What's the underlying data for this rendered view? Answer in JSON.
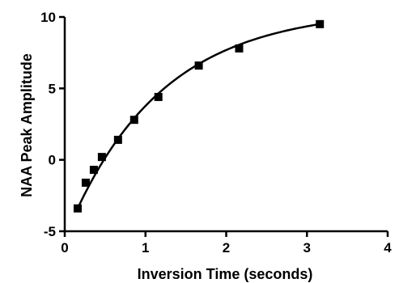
{
  "chart_data": {
    "type": "scatter",
    "title": "",
    "xlabel": "Inversion Time (seconds)",
    "ylabel": "NAA Peak Amplitude",
    "xlim": [
      0,
      4
    ],
    "ylim": [
      -5,
      10
    ],
    "x_ticks": [
      0,
      1,
      2,
      3,
      4
    ],
    "y_ticks": [
      -5,
      0,
      5,
      10
    ],
    "x_tick_labels": [
      "0",
      "1",
      "2",
      "3",
      "4"
    ],
    "y_tick_labels": [
      "-5",
      "0",
      "5",
      "10"
    ],
    "grid": false,
    "legend": "none",
    "series": [
      {
        "marker": "square",
        "color": "#000000",
        "points": [
          {
            "x": 0.16,
            "y": -3.4
          },
          {
            "x": 0.26,
            "y": -1.6
          },
          {
            "x": 0.36,
            "y": -0.7
          },
          {
            "x": 0.46,
            "y": 0.2
          },
          {
            "x": 0.66,
            "y": 1.4
          },
          {
            "x": 0.86,
            "y": 2.8
          },
          {
            "x": 1.16,
            "y": 4.4
          },
          {
            "x": 1.66,
            "y": 6.6
          },
          {
            "x": 2.16,
            "y": 7.8
          },
          {
            "x": 3.16,
            "y": 9.5
          }
        ]
      }
    ],
    "fit_curve": {
      "model": "exponential recovery",
      "color": "#000000"
    }
  }
}
